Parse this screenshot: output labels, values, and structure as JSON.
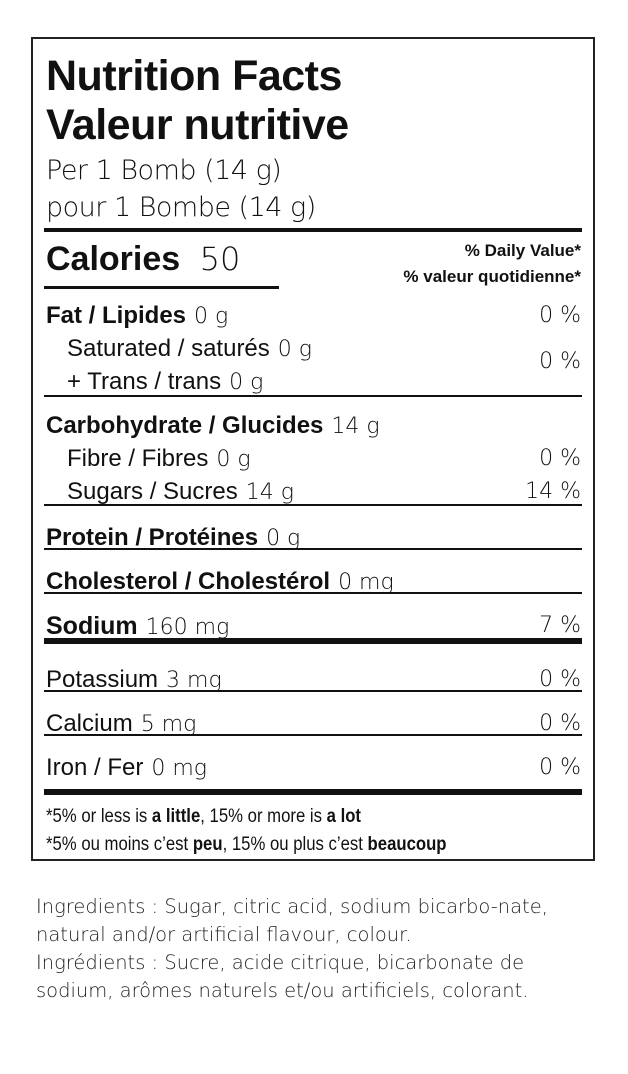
{
  "label": {
    "title_en": "Nutrition Facts",
    "title_fr": "Valeur nutritive",
    "serving_en": "Per 1 Bomb (14 g)",
    "serving_fr": "pour 1 Bombe (14 g)",
    "calories_label": "Calories",
    "calories_value": "50",
    "dv_en": "% Daily Value*",
    "dv_fr": "% valeur quotidienne*",
    "rows": [
      {
        "name": "Fat / Lipides",
        "amount": "0 g",
        "dv": "0 %"
      },
      {
        "name": "Saturated / saturés",
        "amount": "0 g",
        "dv": "0 %"
      },
      {
        "name": "+ Trans / trans",
        "amount": "0 g"
      },
      {
        "name": "Carbohydrate / Glucides",
        "amount": "14 g"
      },
      {
        "name": "Fibre / Fibres",
        "amount": "0 g",
        "dv": "0 %"
      },
      {
        "name": "Sugars / Sucres",
        "amount": "14 g",
        "dv": "14 %"
      },
      {
        "name": "Protein / Protéines",
        "amount": "0 g"
      },
      {
        "name": "Cholesterol / Cholestérol",
        "amount": "0 mg"
      },
      {
        "name": "Sodium",
        "amount": "160 mg",
        "dv": "7 %"
      },
      {
        "name": "Potassium",
        "amount": "3 mg",
        "dv": "0 %"
      },
      {
        "name": "Calcium",
        "amount": "5 mg",
        "dv": "0 %"
      },
      {
        "name": "Iron / Fer",
        "amount": "0 mg",
        "dv": "0 %"
      }
    ],
    "footnote_en": {
      "a": "*5% or less is ",
      "b": "a little",
      "c": ", 15% or more is ",
      "d": "a lot"
    },
    "footnote_fr": {
      "a": "*5% ou moins c’est ",
      "b": "peu",
      "c": ", 15% ou plus c’est ",
      "d": "beaucoup"
    }
  },
  "ingredients": {
    "en": "Ingredients : Sugar, citric acid, sodium bicarbo-nate, natural and/or artificial flavour, colour.",
    "fr": "Ingrédients : Sucre, acide citrique, bicarbonate de sodium, arômes naturels et/ou artificiels, colorant."
  }
}
